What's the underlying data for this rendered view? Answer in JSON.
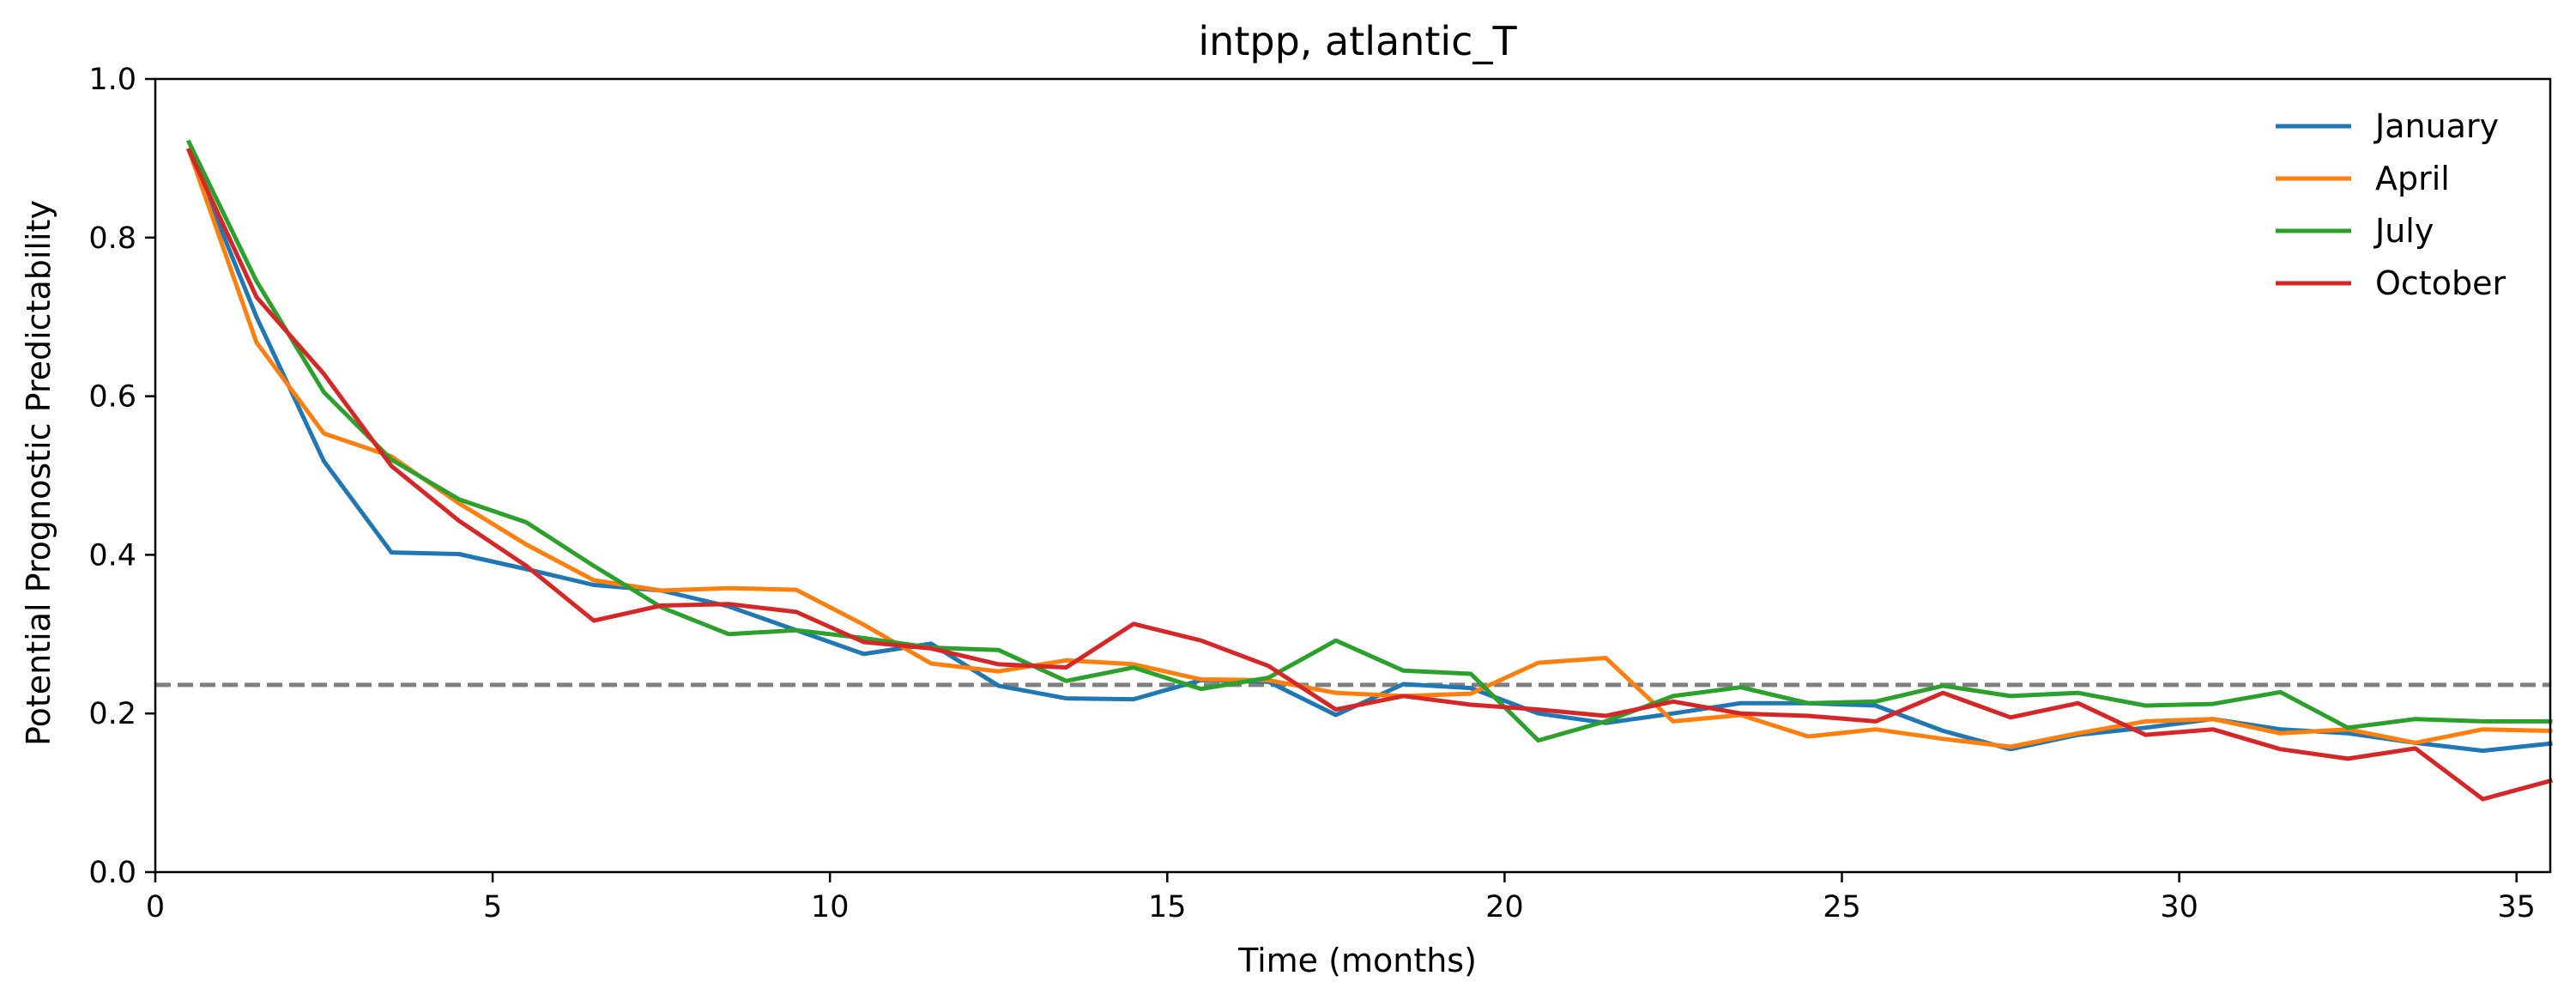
{
  "chart_data": {
    "type": "line",
    "title": "intpp, atlantic_T",
    "xlabel": "Time (months)",
    "ylabel": "Potential Prognostic Predictability",
    "xlim": [
      0,
      35.5
    ],
    "ylim": [
      0.0,
      1.0
    ],
    "xticks": [
      0,
      5,
      10,
      15,
      20,
      25,
      30,
      35
    ],
    "xtick_labels": [
      "0",
      "5",
      "10",
      "15",
      "20",
      "25",
      "30",
      "35"
    ],
    "yticks": [
      0.0,
      0.2,
      0.4,
      0.6,
      0.8,
      1.0
    ],
    "ytick_labels": [
      "0.0",
      "0.2",
      "0.4",
      "0.6",
      "0.8",
      "1.0"
    ],
    "grid": false,
    "legend_position": "top-right",
    "reference_line": {
      "y": 0.236,
      "style": "dashed",
      "color": "#808080"
    },
    "x": [
      0.5,
      1.5,
      2.5,
      3.5,
      4.5,
      5.5,
      6.5,
      7.5,
      8.5,
      9.5,
      10.5,
      11.5,
      12.5,
      13.5,
      14.5,
      15.5,
      16.5,
      17.5,
      18.5,
      19.5,
      20.5,
      21.5,
      22.5,
      23.5,
      24.5,
      25.5,
      26.5,
      27.5,
      28.5,
      29.5,
      30.5,
      31.5,
      32.5,
      33.5,
      34.5,
      35.5
    ],
    "series": [
      {
        "name": "January",
        "color": "#1f77b4",
        "values": [
          0.91,
          0.7,
          0.518,
          0.403,
          0.401,
          0.382,
          0.362,
          0.355,
          0.335,
          0.305,
          0.275,
          0.288,
          0.235,
          0.219,
          0.218,
          0.242,
          0.24,
          0.198,
          0.237,
          0.232,
          0.2,
          0.188,
          0.2,
          0.213,
          0.213,
          0.21,
          0.178,
          0.155,
          0.173,
          0.182,
          0.193,
          0.18,
          0.175,
          0.163,
          0.153,
          0.162
        ]
      },
      {
        "name": "April",
        "color": "#ff7f0e",
        "values": [
          0.91,
          0.668,
          0.553,
          0.524,
          0.465,
          0.413,
          0.368,
          0.355,
          0.358,
          0.356,
          0.312,
          0.263,
          0.253,
          0.267,
          0.262,
          0.243,
          0.242,
          0.226,
          0.222,
          0.225,
          0.264,
          0.27,
          0.19,
          0.198,
          0.171,
          0.18,
          0.168,
          0.158,
          0.175,
          0.19,
          0.193,
          0.175,
          0.18,
          0.163,
          0.18,
          0.178
        ]
      },
      {
        "name": "July",
        "color": "#2ca02c",
        "values": [
          0.92,
          0.745,
          0.605,
          0.52,
          0.47,
          0.441,
          0.386,
          0.334,
          0.3,
          0.305,
          0.295,
          0.283,
          0.28,
          0.241,
          0.258,
          0.231,
          0.245,
          0.292,
          0.254,
          0.25,
          0.166,
          0.19,
          0.222,
          0.233,
          0.213,
          0.215,
          0.235,
          0.222,
          0.226,
          0.21,
          0.212,
          0.227,
          0.182,
          0.193,
          0.19,
          0.19
        ]
      },
      {
        "name": "October",
        "color": "#d62728",
        "values": [
          0.91,
          0.725,
          0.628,
          0.512,
          0.443,
          0.386,
          0.317,
          0.336,
          0.338,
          0.328,
          0.29,
          0.282,
          0.262,
          0.258,
          0.313,
          0.292,
          0.26,
          0.205,
          0.222,
          0.211,
          0.205,
          0.197,
          0.215,
          0.2,
          0.197,
          0.19,
          0.226,
          0.195,
          0.213,
          0.173,
          0.18,
          0.155,
          0.143,
          0.156,
          0.092,
          0.115
        ]
      }
    ]
  }
}
